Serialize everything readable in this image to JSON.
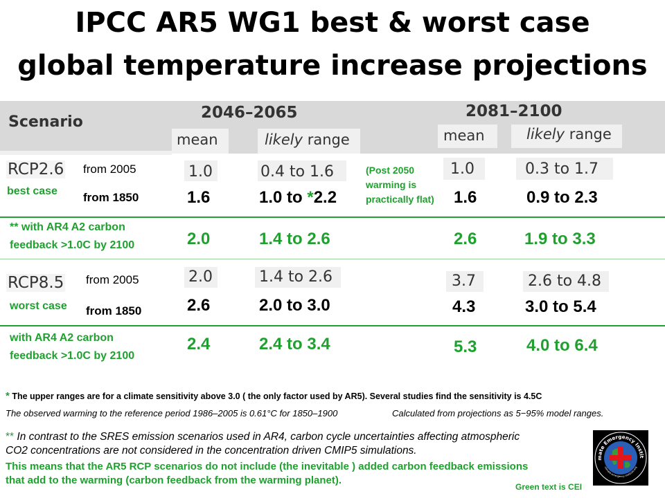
{
  "title": {
    "line1": "IPCC  AR5 WG1 best & worst case",
    "line2": "global temperature increase projections"
  },
  "header": {
    "scenario": "Scenario",
    "period1": "2046–2065",
    "period2": "2081–2100",
    "mean": "mean",
    "likely": "likely",
    "range": " range"
  },
  "rcp26": {
    "name": "RCP2.6",
    "from2005": "from  2005",
    "best_case": "best case",
    "from1850": "from 1850",
    "p1_mean_2005": "1.0",
    "p1_range_2005": "0.4 to 1.6",
    "post2050_note": [
      "(Post 2050",
      "warming is",
      "practically flat)"
    ],
    "p2_mean_2005": "1.0",
    "p2_range_2005": "0.3 to 1.7",
    "p1_mean_1850": "1.6",
    "p1_range_1850_a": "1.0 to ",
    "p1_range_1850_star": "*",
    "p1_range_1850_b": "2.2",
    "p2_mean_1850": "1.6",
    "p2_range_1850": "0.9  to 2.3"
  },
  "rcp26_feedback": {
    "line1": "** with AR4 A2 carbon",
    "line2": "feedback  >1.0C by 2100",
    "p1_mean": "2.0",
    "p1_range": "1.4 to  2.6",
    "p2_mean": "2.6",
    "p2_range": "1.9 to  3.3"
  },
  "rcp85": {
    "name": "RCP8.5",
    "from2005": "from  2005",
    "worst_case": "worst case",
    "from1850": "from 1850",
    "p1_mean_2005": "2.0",
    "p1_range_2005": "1.4 to 2.6",
    "p2_mean_2005": "3.7",
    "p2_range_2005": "2.6 to 4.8",
    "p1_mean_1850": "2.6",
    "p1_range_1850": "2.0  to 3.0",
    "p2_mean_1850": "4.3",
    "p2_range_1850": "3.0 to  5.4"
  },
  "rcp85_feedback": {
    "line1": "with AR4 A2 carbon",
    "line2": "feedback  >1.0C by 2100",
    "p1_mean": "2.4",
    "p1_range": "2.4  to 3.4",
    "p2_mean": "5.3",
    "p2_range": "4.0  to 6.4"
  },
  "notes": {
    "star": "*",
    "sensitivity": " The upper ranges are for a climate sensitivity above 3.0 ( the only factor used by AR5).  Several studies  find the sensitivity is 4.5C",
    "observed": "The observed warming to the reference period 1986–2005 is 0.61°C for 1850–1900",
    "calculated": "Calculated from projections as 5−95% model ranges.",
    "sres_star": "**",
    "sres_1": " In contrast to the SRES emission scenarios used in AR4, carbon cycle uncertainties affecting atmospheric",
    "sres_2": "CO2 concentrations are not considered in the concentration driven CMIP5 simulations.",
    "cei_1": "This means that the AR5 RCP scenarios do not include  (the inevitable ) added  carbon feedback emissions",
    "cei_2": "that add to the warming (carbon feedback  from the warming planet).",
    "green_is_cei": "Green text is CEI"
  },
  "logo": {
    "text_top": "Climate Emergency Institute",
    "text_bottom": "climate-emergency-institute.org"
  },
  "colors": {
    "green": "#1fa02f",
    "gray": "#d9d9d9",
    "red": "#e3161c"
  }
}
